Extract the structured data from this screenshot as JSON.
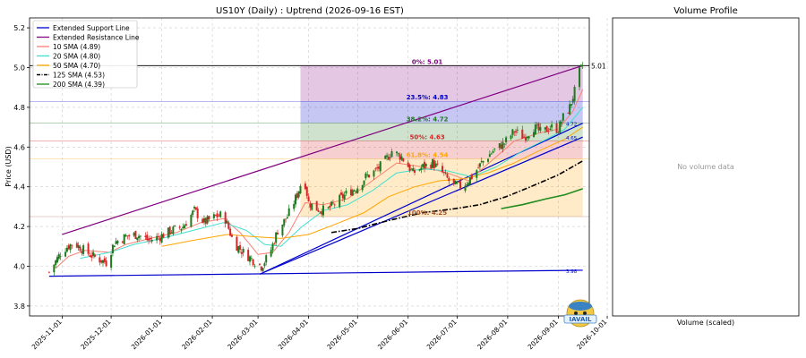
{
  "chart_data": [
    {
      "type": "candlestick",
      "title": "US10Y (Daily) : Uptrend (2026-09-16 EST)",
      "ylabel": "Price (USD)",
      "ylim": [
        3.75,
        5.25
      ],
      "xlim": [
        "2025-10-12",
        "2026-09-20"
      ],
      "grid": true,
      "yticks": [
        3.8,
        4.0,
        4.2,
        4.4,
        4.6,
        4.8,
        5.0,
        5.2
      ],
      "xticks": [
        "2025-11-01",
        "2025-12-01",
        "2026-01-01",
        "2026-02-01",
        "2026-03-01",
        "2026-04-01",
        "2026-05-01",
        "2026-06-01",
        "2026-07-01",
        "2026-08-01",
        "2026-09-01",
        "2026-10-01"
      ],
      "colors": {
        "up": "#1e7a1e",
        "down": "#d62728",
        "sma10": "#fa8072",
        "sma20": "#40e0d0",
        "sma50": "#ffa500",
        "sma125": "#000000",
        "sma200": "#1e8c1e",
        "support": "#0000cd",
        "resistance": "#800080"
      },
      "legend": {
        "position": "top-left",
        "entries": [
          {
            "key": "support",
            "label": "Extended Support Line",
            "color": "#0000cd",
            "style": "solid"
          },
          {
            "key": "resistance",
            "label": "Extended Resistance Line",
            "color": "#800080",
            "style": "solid"
          },
          {
            "key": "sma10",
            "label": "10 SMA (4.89)",
            "color": "#fa8072",
            "style": "solid"
          },
          {
            "key": "sma20",
            "label": "20 SMA (4.80)",
            "color": "#40e0d0",
            "style": "solid"
          },
          {
            "key": "sma50",
            "label": "50 SMA (4.70)",
            "color": "#ffa500",
            "style": "solid"
          },
          {
            "key": "sma125",
            "label": "125 SMA (4.53)",
            "color": "#000000",
            "style": "dashdot"
          },
          {
            "key": "sma200",
            "label": "200 SMA (4.39)",
            "color": "#1e8c1e",
            "style": "solid"
          }
        ]
      },
      "close_keypoints": [
        [
          "2025-10-24",
          3.97
        ],
        [
          "2025-11-01",
          4.08
        ],
        [
          "2025-11-08",
          4.12
        ],
        [
          "2025-11-16",
          4.07
        ],
        [
          "2025-11-22",
          4.04
        ],
        [
          "2025-11-28",
          4.02
        ],
        [
          "2025-12-03",
          4.12
        ],
        [
          "2025-12-10",
          4.15
        ],
        [
          "2025-12-17",
          4.16
        ],
        [
          "2025-12-24",
          4.13
        ],
        [
          "2025-12-31",
          4.15
        ],
        [
          "2026-01-07",
          4.18
        ],
        [
          "2026-01-14",
          4.2
        ],
        [
          "2026-01-21",
          4.28
        ],
        [
          "2026-01-27",
          4.22
        ],
        [
          "2026-02-03",
          4.25
        ],
        [
          "2026-02-08",
          4.26
        ],
        [
          "2026-02-14",
          4.12
        ],
        [
          "2026-02-20",
          4.07
        ],
        [
          "2026-02-26",
          4.03
        ],
        [
          "2026-03-03",
          4.0
        ],
        [
          "2026-03-08",
          4.06
        ],
        [
          "2026-03-13",
          4.18
        ],
        [
          "2026-03-19",
          4.25
        ],
        [
          "2026-03-25",
          4.36
        ],
        [
          "2026-03-29",
          4.46
        ],
        [
          "2026-04-01",
          4.32
        ],
        [
          "2026-04-06",
          4.29
        ],
        [
          "2026-04-12",
          4.28
        ],
        [
          "2026-04-19",
          4.33
        ],
        [
          "2026-04-25",
          4.37
        ],
        [
          "2026-05-01",
          4.4
        ],
        [
          "2026-05-06",
          4.45
        ],
        [
          "2026-05-12",
          4.48
        ],
        [
          "2026-05-17",
          4.52
        ],
        [
          "2026-05-22",
          4.58
        ],
        [
          "2026-05-28",
          4.55
        ],
        [
          "2026-06-04",
          4.47
        ],
        [
          "2026-06-10",
          4.5
        ],
        [
          "2026-06-16",
          4.52
        ],
        [
          "2026-06-22",
          4.47
        ],
        [
          "2026-06-28",
          4.41
        ],
        [
          "2026-07-04",
          4.4
        ],
        [
          "2026-07-10",
          4.45
        ],
        [
          "2026-07-16",
          4.52
        ],
        [
          "2026-07-23",
          4.58
        ],
        [
          "2026-07-30",
          4.62
        ],
        [
          "2026-08-05",
          4.68
        ],
        [
          "2026-08-11",
          4.65
        ],
        [
          "2026-08-17",
          4.7
        ],
        [
          "2026-08-22",
          4.67
        ],
        [
          "2026-08-27",
          4.7
        ],
        [
          "2026-09-01",
          4.69
        ],
        [
          "2026-09-04",
          4.75
        ],
        [
          "2026-09-08",
          4.8
        ],
        [
          "2026-09-11",
          4.88
        ],
        [
          "2026-09-13",
          4.96
        ],
        [
          "2026-09-16",
          5.01
        ]
      ],
      "sma": {
        "sma10": [
          [
            "2025-10-28",
            3.99
          ],
          [
            "2025-11-05",
            4.05
          ],
          [
            "2025-11-15",
            4.08
          ],
          [
            "2025-11-30",
            4.07
          ],
          [
            "2025-12-10",
            4.11
          ],
          [
            "2025-12-25",
            4.14
          ],
          [
            "2026-01-10",
            4.17
          ],
          [
            "2026-01-25",
            4.22
          ],
          [
            "2026-02-08",
            4.24
          ],
          [
            "2026-02-18",
            4.17
          ],
          [
            "2026-03-01",
            4.06
          ],
          [
            "2026-03-10",
            4.07
          ],
          [
            "2026-03-20",
            4.17
          ],
          [
            "2026-03-30",
            4.32
          ],
          [
            "2026-04-10",
            4.31
          ],
          [
            "2026-04-25",
            4.34
          ],
          [
            "2026-05-10",
            4.43
          ],
          [
            "2026-05-25",
            4.52
          ],
          [
            "2026-06-10",
            4.5
          ],
          [
            "2026-06-25",
            4.47
          ],
          [
            "2026-07-08",
            4.43
          ],
          [
            "2026-07-22",
            4.53
          ],
          [
            "2026-08-05",
            4.63
          ],
          [
            "2026-08-20",
            4.67
          ],
          [
            "2026-09-01",
            4.69
          ],
          [
            "2026-09-10",
            4.78
          ],
          [
            "2026-09-16",
            4.89
          ]
        ],
        "sma20": [
          [
            "2025-11-12",
            4.04
          ],
          [
            "2025-11-30",
            4.07
          ],
          [
            "2025-12-15",
            4.11
          ],
          [
            "2026-01-01",
            4.14
          ],
          [
            "2026-01-20",
            4.18
          ],
          [
            "2026-02-08",
            4.22
          ],
          [
            "2026-02-22",
            4.18
          ],
          [
            "2026-03-05",
            4.11
          ],
          [
            "2026-03-15",
            4.1
          ],
          [
            "2026-03-28",
            4.2
          ],
          [
            "2026-04-10",
            4.28
          ],
          [
            "2026-04-25",
            4.31
          ],
          [
            "2026-05-10",
            4.38
          ],
          [
            "2026-05-25",
            4.47
          ],
          [
            "2026-06-10",
            4.49
          ],
          [
            "2026-06-25",
            4.48
          ],
          [
            "2026-07-10",
            4.45
          ],
          [
            "2026-07-25",
            4.5
          ],
          [
            "2026-08-10",
            4.58
          ],
          [
            "2026-08-25",
            4.64
          ],
          [
            "2026-09-05",
            4.69
          ],
          [
            "2026-09-16",
            4.8
          ]
        ],
        "sma50": [
          [
            "2026-01-01",
            4.1
          ],
          [
            "2026-01-20",
            4.13
          ],
          [
            "2026-02-10",
            4.16
          ],
          [
            "2026-02-25",
            4.15
          ],
          [
            "2026-03-15",
            4.14
          ],
          [
            "2026-04-01",
            4.16
          ],
          [
            "2026-04-20",
            4.22
          ],
          [
            "2026-05-05",
            4.27
          ],
          [
            "2026-05-20",
            4.35
          ],
          [
            "2026-06-05",
            4.4
          ],
          [
            "2026-06-20",
            4.43
          ],
          [
            "2026-07-05",
            4.44
          ],
          [
            "2026-07-20",
            4.47
          ],
          [
            "2026-08-05",
            4.52
          ],
          [
            "2026-08-20",
            4.58
          ],
          [
            "2026-09-05",
            4.64
          ],
          [
            "2026-09-16",
            4.7
          ]
        ],
        "sma125": [
          [
            "2026-04-15",
            4.17
          ],
          [
            "2026-05-01",
            4.19
          ],
          [
            "2026-05-20",
            4.23
          ],
          [
            "2026-06-10",
            4.27
          ],
          [
            "2026-06-30",
            4.29
          ],
          [
            "2026-07-15",
            4.31
          ],
          [
            "2026-07-31",
            4.35
          ],
          [
            "2026-08-15",
            4.4
          ],
          [
            "2026-09-01",
            4.46
          ],
          [
            "2026-09-16",
            4.53
          ]
        ],
        "sma200": [
          [
            "2026-07-28",
            4.29
          ],
          [
            "2026-08-10",
            4.31
          ],
          [
            "2026-08-25",
            4.34
          ],
          [
            "2026-09-05",
            4.36
          ],
          [
            "2026-09-16",
            4.39
          ]
        ]
      },
      "trend_lines": {
        "support": [
          {
            "from": [
              "2025-10-24",
              3.95
            ],
            "to": [
              "2026-09-16",
              3.98
            ]
          },
          {
            "from": [
              "2026-03-02",
              3.96
            ],
            "to": [
              "2026-09-16",
              4.65
            ]
          },
          {
            "from": [
              "2026-03-02",
              3.96
            ],
            "to": [
              "2026-09-16",
              4.72
            ]
          }
        ],
        "resistance": [
          {
            "from": [
              "2025-11-01",
              4.16
            ],
            "to": [
              "2026-09-16",
              5.01
            ]
          }
        ]
      },
      "fibonacci": {
        "start": "2026-03-27",
        "end": "2026-09-16",
        "levels": [
          {
            "label": "0%: 5.01",
            "value": 5.01,
            "color": "#800080"
          },
          {
            "label": "23.5%: 4.83",
            "value": 4.83,
            "color": "#0000cd"
          },
          {
            "label": "38.2%: 4.72",
            "value": 4.72,
            "color": "#1e7a1e"
          },
          {
            "label": "50%: 4.63",
            "value": 4.63,
            "color": "#d62728"
          },
          {
            "label": "61.8%: 4.54",
            "value": 4.54,
            "color": "#ffa500"
          },
          {
            "label": "100%: 4.25",
            "value": 4.25,
            "color": "#a0522d"
          }
        ]
      },
      "right_labels": [
        {
          "text": "5.01",
          "value": 5.01,
          "color": "#000000"
        },
        {
          "text": "4.72",
          "value": 4.72,
          "color": "#0000cd"
        },
        {
          "text": "4.65",
          "value": 4.65,
          "color": "#0000cd"
        },
        {
          "text": "3.98",
          "value": 3.98,
          "color": "#0000cd"
        }
      ]
    },
    {
      "type": "bar",
      "title": "Volume Profile",
      "xlabel": "Volume (scaled)",
      "empty_text": "No volume data"
    }
  ]
}
